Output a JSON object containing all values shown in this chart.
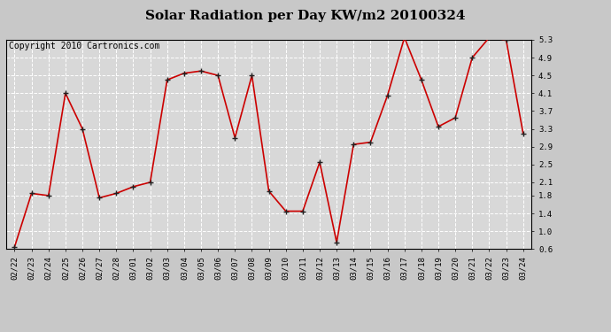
{
  "title": "Solar Radiation per Day KW/m2 20100324",
  "copyright": "Copyright 2010 Cartronics.com",
  "dates": [
    "02/22",
    "02/23",
    "02/24",
    "02/25",
    "02/26",
    "02/27",
    "02/28",
    "03/01",
    "03/02",
    "03/03",
    "03/04",
    "03/05",
    "03/06",
    "03/07",
    "03/08",
    "03/09",
    "03/10",
    "03/11",
    "03/12",
    "03/13",
    "03/14",
    "03/15",
    "03/16",
    "03/17",
    "03/18",
    "03/19",
    "03/20",
    "03/21",
    "03/22",
    "03/23",
    "03/24"
  ],
  "values": [
    0.65,
    1.85,
    1.8,
    4.1,
    3.3,
    1.75,
    1.85,
    2.0,
    2.1,
    4.4,
    4.55,
    4.6,
    4.5,
    3.1,
    4.5,
    1.9,
    1.45,
    1.45,
    2.55,
    0.75,
    2.95,
    3.0,
    4.05,
    5.35,
    4.4,
    3.35,
    3.55,
    4.9,
    5.35,
    5.3,
    3.2
  ],
  "line_color": "#cc0000",
  "marker_color": "#222222",
  "background_color": "#c8c8c8",
  "plot_bg_color": "#d8d8d8",
  "grid_color": "#ffffff",
  "ylim": [
    0.6,
    5.3
  ],
  "yticks": [
    0.6,
    1.0,
    1.4,
    1.8,
    2.1,
    2.5,
    2.9,
    3.3,
    3.7,
    4.1,
    4.5,
    4.9,
    5.3
  ],
  "title_fontsize": 11,
  "tick_fontsize": 6.5,
  "copyright_fontsize": 7
}
